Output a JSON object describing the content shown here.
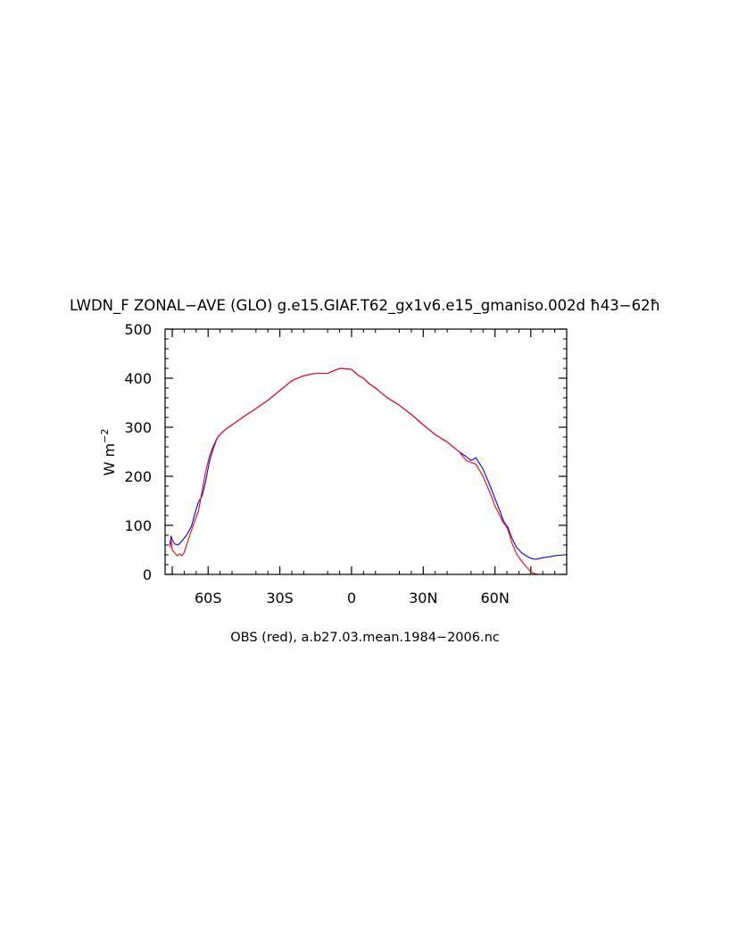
{
  "chart_data": {
    "type": "line",
    "title": "LWDN_F ZONAL−AVE (GLO) g.e15.GIAF.T62_gx1v6.e15_gmaniso.002d ħ43−62ħ",
    "ylabel_base": "W m",
    "ylabel_exp": "−2",
    "caption": "OBS (red), a.b27.03.mean.1984−2006.nc",
    "xlim": [
      -78,
      90
    ],
    "ylim": [
      0,
      500
    ],
    "x_ticks": [
      {
        "value": -60,
        "label": "60S"
      },
      {
        "value": -30,
        "label": "30S"
      },
      {
        "value": 0,
        "label": "0"
      },
      {
        "value": 30,
        "label": "30N"
      },
      {
        "value": 60,
        "label": "60N"
      }
    ],
    "y_ticks": [
      {
        "value": 0,
        "label": "0"
      },
      {
        "value": 100,
        "label": "100"
      },
      {
        "value": 200,
        "label": "200"
      },
      {
        "value": 300,
        "label": "300"
      },
      {
        "value": 400,
        "label": "400"
      },
      {
        "value": 500,
        "label": "500"
      }
    ],
    "series": [
      {
        "color": "#0000ff",
        "x": [
          -76,
          -75.5,
          -75,
          -74,
          -72.5,
          -71,
          -69,
          -67,
          -65.5,
          -64,
          -62.5,
          -61,
          -59.5,
          -58,
          -56,
          -54,
          -52,
          -50,
          -45,
          -40,
          -35,
          -30,
          -25,
          -20,
          -15,
          -10,
          -5,
          0,
          3,
          5,
          7,
          10,
          15,
          20,
          25,
          30,
          35,
          40,
          45,
          48,
          50,
          52,
          55,
          58,
          60,
          62,
          63.5,
          64.5,
          65.5,
          67,
          69,
          71,
          73,
          75,
          77,
          79,
          81,
          83,
          85,
          87,
          89
        ],
        "y": [
          60,
          78,
          70,
          62,
          60,
          68,
          80,
          98,
          125,
          148,
          160,
          190,
          230,
          255,
          280,
          290,
          298,
          305,
          322,
          338,
          355,
          375,
          395,
          405,
          410,
          410,
          420,
          418,
          405,
          400,
          390,
          380,
          360,
          345,
          326,
          305,
          285,
          270,
          250,
          240,
          232,
          238,
          215,
          180,
          155,
          130,
          110,
          102,
          95,
          75,
          55,
          45,
          38,
          33,
          31,
          33,
          35,
          36,
          38,
          39,
          40
        ]
      },
      {
        "color": "#ff0000",
        "x": [
          -76,
          -75.5,
          -75,
          -74,
          -73,
          -72,
          -71,
          -70,
          -69,
          -67,
          -65.5,
          -64,
          -62.5,
          -61,
          -59.5,
          -58,
          -56,
          -54,
          -52,
          -50,
          -45,
          -40,
          -35,
          -30,
          -25,
          -20,
          -15,
          -10,
          -5,
          0,
          3,
          5,
          7,
          10,
          15,
          20,
          25,
          30,
          35,
          40,
          45,
          48,
          50,
          52,
          55,
          58,
          60,
          62,
          63.5,
          64.5,
          65.5,
          67,
          69,
          71,
          73,
          75,
          77,
          79,
          81,
          83,
          85,
          87,
          89
        ],
        "y": [
          55,
          70,
          50,
          44,
          38,
          42,
          38,
          45,
          60,
          90,
          110,
          130,
          170,
          210,
          240,
          260,
          280,
          290,
          298,
          305,
          322,
          338,
          355,
          375,
          395,
          405,
          410,
          410,
          420,
          418,
          405,
          400,
          390,
          380,
          360,
          345,
          326,
          305,
          285,
          270,
          250,
          232,
          228,
          225,
          200,
          165,
          140,
          120,
          105,
          100,
          90,
          65,
          42,
          28,
          16,
          5,
          1,
          0,
          0,
          0,
          0,
          0,
          0
        ]
      }
    ]
  }
}
